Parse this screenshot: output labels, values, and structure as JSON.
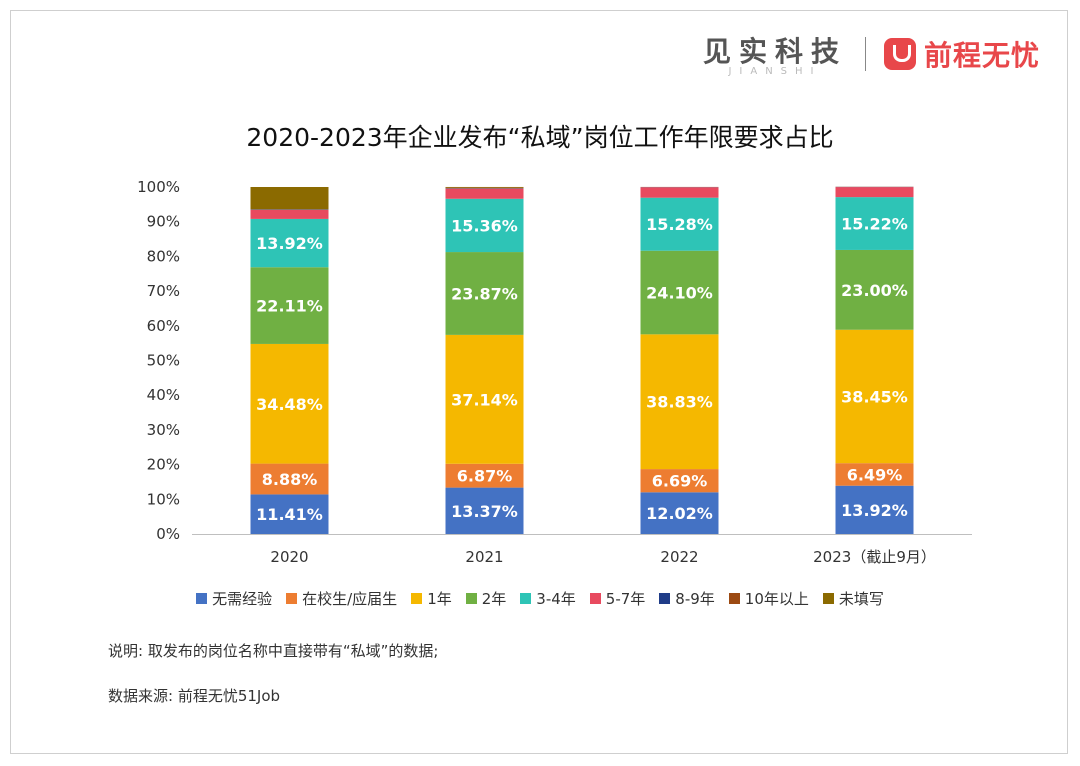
{
  "brand": {
    "left_name": "见实科技",
    "left_sub": "JIANSHI",
    "right_name": "前程无忧"
  },
  "chart_data": {
    "type": "bar",
    "stacked": true,
    "title": "2020-2023年企业发布“私域”岗位工作年限要求占比",
    "categories": [
      "2020",
      "2021",
      "2022",
      "2023（截止9月）"
    ],
    "ylim": [
      0,
      100
    ],
    "yticks": [
      "0%",
      "10%",
      "20%",
      "30%",
      "40%",
      "50%",
      "60%",
      "70%",
      "80%",
      "90%",
      "100%"
    ],
    "legend_position": "bottom",
    "series": [
      {
        "name": "无需经验",
        "color": "#4472c4",
        "values": [
          11.41,
          13.37,
          12.02,
          13.92
        ],
        "labels": [
          "11.41%",
          "13.37%",
          "12.02%",
          "13.92%"
        ]
      },
      {
        "name": "在校生/应届生",
        "color": "#ed7d31",
        "values": [
          8.88,
          6.87,
          6.69,
          6.49
        ],
        "labels": [
          "8.88%",
          "6.87%",
          "6.69%",
          "6.49%"
        ]
      },
      {
        "name": "1年",
        "color": "#f5b800",
        "values": [
          34.48,
          37.14,
          38.83,
          38.45
        ],
        "labels": [
          "34.48%",
          "37.14%",
          "38.83%",
          "38.45%"
        ]
      },
      {
        "name": "2年",
        "color": "#70b043",
        "values": [
          22.11,
          23.87,
          24.1,
          23.0
        ],
        "labels": [
          "22.11%",
          "23.87%",
          "24.10%",
          "23.00%"
        ]
      },
      {
        "name": "3-4年",
        "color": "#2ec4b6",
        "values": [
          13.92,
          15.36,
          15.28,
          15.22
        ],
        "labels": [
          "13.92%",
          "15.36%",
          "15.28%",
          "15.22%"
        ]
      },
      {
        "name": "5-7年",
        "color": "#e84a5f",
        "values": [
          2.6,
          2.9,
          3.0,
          2.9
        ],
        "labels": [
          "",
          "",
          "",
          ""
        ]
      },
      {
        "name": "8-9年",
        "color": "#1f3c88",
        "values": [
          0.1,
          0.1,
          0.05,
          0.05
        ],
        "labels": [
          "",
          "",
          "",
          ""
        ]
      },
      {
        "name": "10年以上",
        "color": "#9c4a12",
        "values": [
          0.1,
          0.2,
          0.05,
          0.05
        ],
        "labels": [
          "",
          "",
          "",
          ""
        ]
      },
      {
        "name": "未填写",
        "color": "#8b6a00",
        "values": [
          6.4,
          0.2,
          0.0,
          0.0
        ],
        "labels": [
          "",
          "",
          "",
          ""
        ]
      }
    ]
  },
  "notes": {
    "explanation": "说明: 取发布的岗位名称中直接带有“私域”的数据;",
    "source": "数据来源: 前程无忧51Job"
  }
}
